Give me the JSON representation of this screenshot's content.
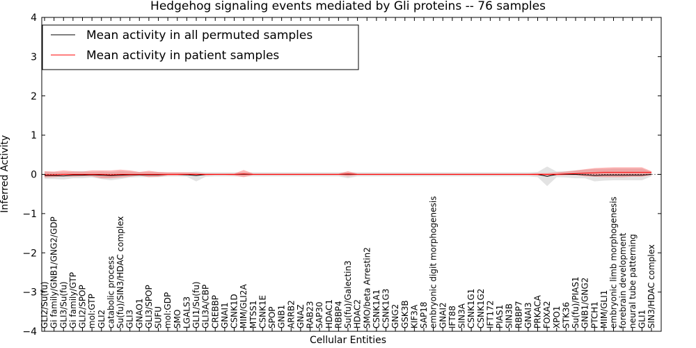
{
  "chart_data": {
    "type": "line",
    "title": "Hedgehog signaling events mediated by Gli proteins -- 76 samples",
    "xlabel": "Cellular Entities",
    "ylabel": "Inferred Activity",
    "ylim": [
      -4,
      4
    ],
    "yticks": [
      -4,
      -3,
      -2,
      -1,
      0,
      1,
      2,
      3,
      4
    ],
    "legend_position": "upper-left",
    "categories": [
      "GLI2/Su(fu)",
      "Gi family/GNB1/GNG2/GDP",
      "GLI3/Su(fu)",
      "Gi family/GTP",
      "GLI2/SPOP",
      "mol:GTP",
      "GLI2",
      "catabolic process",
      "Su(fu)/SIN3/HDAC complex",
      "GLI3",
      "GNAO1",
      "GLI3/SPOP",
      "SUFU",
      "mol:GDP",
      "SMO",
      "LGALS3",
      "GLI1/Su(fu)",
      "GLI3A/CBP",
      "CREBBP",
      "GNAI1",
      "CSNK1D",
      "MIM/GLI2A",
      "MTSS1",
      "CSNK1E",
      "SPOP",
      "GNB1",
      "ARRB2",
      "GNAZ",
      "RAB23",
      "SAP30",
      "HDAC1",
      "RBBP4",
      "Su(fu)/Galectin3",
      "HDAC2",
      "SMO/beta Arrestin2",
      "CSNK1A1",
      "CSNK1G3",
      "GNG2",
      "GSK3B",
      "KIF3A",
      "SAP18",
      "embryonic digit morphogenesis",
      "GNAI2",
      "IFT88",
      "SIN3A",
      "CSNK1G1",
      "CSNK1G2",
      "IFT172",
      "PIAS1",
      "SIN3B",
      "RBBP7",
      "GNAI3",
      "PRKACA",
      "FOXA2",
      "XPO1",
      "STK36",
      "Su(fu)/PIAS1",
      "GNB1/GNG2",
      "PTCH1",
      "MIM/GLI1",
      "embryonic limb morphogenesis",
      "forebrain development",
      "neural tube patterning",
      "GLI1",
      "SIN3/HDAC complex"
    ],
    "series": [
      {
        "name": "Mean activity in all permuted samples",
        "color": "#000000",
        "values": [
          -0.03,
          -0.03,
          -0.04,
          -0.02,
          -0.02,
          -0.01,
          -0.02,
          -0.03,
          -0.02,
          -0.01,
          -0.01,
          -0.01,
          -0.01,
          0.0,
          0.0,
          -0.01,
          -0.03,
          0.0,
          0.0,
          0.0,
          0.0,
          0.0,
          0.0,
          0.0,
          0.0,
          0.0,
          0.0,
          0.0,
          0.0,
          0.0,
          0.0,
          0.0,
          0.0,
          0.0,
          0.0,
          0.0,
          0.0,
          0.0,
          0.0,
          0.0,
          0.0,
          0.0,
          0.0,
          0.0,
          0.0,
          0.0,
          0.0,
          0.0,
          0.0,
          0.0,
          0.0,
          0.0,
          0.0,
          -0.05,
          0.0,
          0.0,
          0.0,
          -0.01,
          -0.03,
          -0.02,
          -0.02,
          -0.02,
          -0.02,
          -0.02,
          0.0
        ],
        "band_lower": [
          -0.12,
          -0.12,
          -0.13,
          -0.1,
          -0.1,
          -0.08,
          -0.12,
          -0.15,
          -0.12,
          -0.08,
          -0.07,
          -0.07,
          -0.07,
          -0.05,
          -0.05,
          -0.06,
          -0.18,
          -0.06,
          -0.05,
          -0.05,
          -0.05,
          -0.05,
          -0.05,
          -0.05,
          -0.05,
          -0.05,
          -0.05,
          -0.05,
          -0.05,
          -0.05,
          -0.05,
          -0.05,
          -0.1,
          -0.05,
          -0.05,
          -0.05,
          -0.05,
          -0.05,
          -0.05,
          -0.05,
          -0.05,
          -0.05,
          -0.05,
          -0.05,
          -0.05,
          -0.05,
          -0.05,
          -0.05,
          -0.05,
          -0.05,
          -0.05,
          -0.05,
          -0.07,
          -0.3,
          -0.07,
          -0.08,
          -0.1,
          -0.1,
          -0.18,
          -0.16,
          -0.15,
          -0.15,
          -0.15,
          -0.15,
          -0.05
        ],
        "band_upper": [
          0.07,
          0.06,
          0.05,
          0.07,
          0.08,
          0.06,
          0.07,
          0.06,
          0.08,
          0.07,
          0.06,
          0.06,
          0.06,
          0.05,
          0.05,
          0.05,
          0.07,
          0.05,
          0.05,
          0.05,
          0.05,
          0.05,
          0.05,
          0.05,
          0.05,
          0.05,
          0.05,
          0.05,
          0.05,
          0.05,
          0.05,
          0.05,
          0.05,
          0.05,
          0.05,
          0.05,
          0.05,
          0.05,
          0.05,
          0.05,
          0.05,
          0.05,
          0.05,
          0.05,
          0.05,
          0.05,
          0.05,
          0.05,
          0.05,
          0.05,
          0.05,
          0.05,
          0.06,
          0.2,
          0.07,
          0.08,
          0.1,
          0.12,
          0.14,
          0.14,
          0.15,
          0.15,
          0.15,
          0.15,
          0.06
        ]
      },
      {
        "name": "Mean activity in patient samples",
        "color": "#ff0000",
        "values": [
          -0.01,
          -0.01,
          0.0,
          0.0,
          0.0,
          0.0,
          0.0,
          -0.01,
          0.0,
          0.0,
          0.0,
          0.0,
          0.0,
          0.0,
          0.0,
          0.0,
          0.0,
          0.0,
          0.0,
          0.0,
          0.0,
          0.01,
          0.0,
          0.0,
          0.0,
          0.0,
          0.0,
          0.0,
          0.0,
          0.0,
          0.0,
          0.0,
          0.01,
          0.0,
          0.0,
          0.0,
          0.0,
          0.0,
          0.0,
          0.0,
          0.0,
          0.0,
          0.0,
          0.0,
          0.0,
          0.0,
          0.0,
          0.0,
          0.0,
          0.0,
          0.0,
          0.0,
          0.0,
          0.0,
          0.0,
          0.01,
          0.02,
          0.03,
          0.04,
          0.05,
          0.05,
          0.05,
          0.05,
          0.05,
          0.05
        ],
        "band_lower": [
          -0.08,
          -0.07,
          -0.05,
          -0.06,
          -0.05,
          -0.05,
          -0.1,
          -0.1,
          -0.08,
          -0.06,
          -0.03,
          -0.07,
          -0.06,
          -0.03,
          -0.03,
          -0.02,
          -0.02,
          -0.03,
          -0.02,
          -0.02,
          -0.03,
          -0.07,
          -0.02,
          -0.02,
          -0.02,
          -0.02,
          -0.02,
          -0.02,
          -0.02,
          -0.02,
          -0.02,
          -0.02,
          -0.05,
          -0.02,
          -0.02,
          -0.02,
          -0.02,
          -0.02,
          -0.02,
          -0.02,
          -0.02,
          -0.02,
          -0.02,
          -0.02,
          -0.02,
          -0.02,
          -0.02,
          -0.02,
          -0.02,
          -0.02,
          -0.02,
          -0.02,
          -0.03,
          -0.03,
          -0.03,
          -0.02,
          -0.02,
          -0.05,
          -0.06,
          -0.07,
          -0.07,
          -0.07,
          -0.06,
          -0.06,
          -0.02
        ],
        "band_upper": [
          0.08,
          0.07,
          0.1,
          0.08,
          0.07,
          0.1,
          0.1,
          0.1,
          0.12,
          0.1,
          0.06,
          0.09,
          0.06,
          0.05,
          0.05,
          0.05,
          0.04,
          0.02,
          0.02,
          0.02,
          0.02,
          0.11,
          0.02,
          0.02,
          0.02,
          0.02,
          0.02,
          0.02,
          0.02,
          0.02,
          0.02,
          0.02,
          0.08,
          0.02,
          0.02,
          0.02,
          0.02,
          0.02,
          0.02,
          0.02,
          0.02,
          0.02,
          0.02,
          0.02,
          0.02,
          0.02,
          0.02,
          0.02,
          0.02,
          0.02,
          0.02,
          0.02,
          0.03,
          0.03,
          0.05,
          0.07,
          0.1,
          0.13,
          0.16,
          0.17,
          0.18,
          0.18,
          0.18,
          0.18,
          0.08
        ]
      }
    ]
  }
}
